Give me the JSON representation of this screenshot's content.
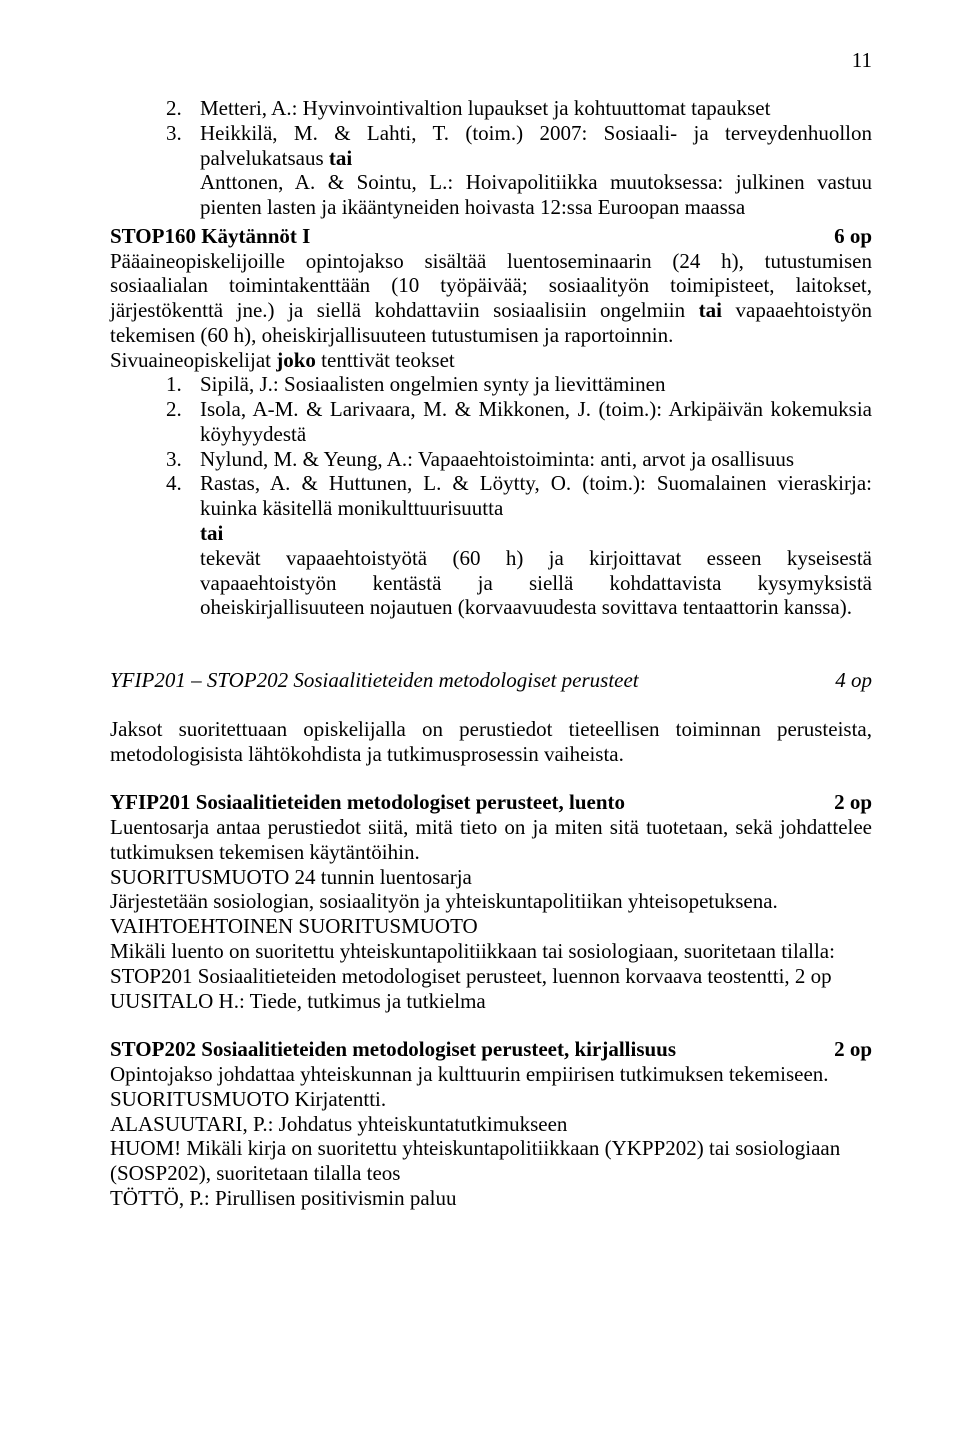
{
  "page_number": "11",
  "topList": {
    "items": [
      {
        "num": "2.",
        "text": "Metteri, A.: Hyvinvointivaltion lupaukset ja kohtuuttomat tapaukset"
      },
      {
        "num": "3.",
        "text_parts": [
          {
            "t": "Heikkilä, M. & Lahti, T. (toim.) 2007: Sosiaali- ja terveydenhuollon palvelukatsaus "
          },
          {
            "t": "tai",
            "bold": true
          }
        ],
        "cont": "Anttonen, A. & Sointu, L.: Hoivapolitiikka muutoksessa: julkinen vastuu pienten lasten ja ikääntyneiden hoivasta 12:ssa Euroopan maassa"
      }
    ]
  },
  "stop160": {
    "heading_left": "STOP160 Käytännöt I",
    "heading_right": "6 op",
    "body_parts": [
      {
        "t": "Pääaineopiskelijoille opintojakso sisältää luentoseminaarin (24 h), tutustumisen sosiaalialan toimintakenttään (10 työpäivää; sosiaalityön toimipisteet, laitokset, järjestökenttä jne.) ja siellä kohdattaviin sosiaalisiin ongelmiin "
      },
      {
        "t": "tai",
        "bold": true
      },
      {
        "t": " vapaaehtoistyön tekemisen (60 h), oheiskirjallisuuteen tutustumisen ja raportoinnin."
      }
    ],
    "sub_parts": [
      {
        "t": "Sivuaineopiskelijat "
      },
      {
        "t": "joko",
        "bold": true
      },
      {
        "t": " tenttivät teokset"
      }
    ],
    "list": [
      {
        "num": "1.",
        "text": "Sipilä, J.: Sosiaalisten ongelmien synty ja lievittäminen"
      },
      {
        "num": "2.",
        "text": "Isola, A-M. & Larivaara, M. & Mikkonen, J. (toim.): Arkipäivän kokemuksia köyhyydestä"
      },
      {
        "num": "3.",
        "text": "Nylund, M. & Yeung, A.: Vapaaehtoistoiminta: anti, arvot ja osallisuus"
      },
      {
        "num": "4.",
        "text": "Rastas, A. & Huttunen, L. & Löytty, O. (toim.): Suomalainen vieraskirja: kuinka käsitellä monikulttuurisuutta"
      }
    ],
    "tai_label": "tai",
    "tai_text": "tekevät vapaaehtoistyötä (60 h) ja kirjoittavat esseen kyseisestä vapaaehtoistyön kentästä ja siellä kohdattavista kysymyksistä oheiskirjallisuuteen nojautuen (korvaavuudesta sovittava tentaattorin kanssa)."
  },
  "yfip_heading": {
    "left": "YFIP201 – STOP202 Sosiaalitieteiden metodologiset perusteet",
    "right": "4 op"
  },
  "yfip_intro": "Jaksot suoritettuaan opiskelijalla on perustiedot tieteellisen toiminnan perusteista, metodologisista lähtökohdista ja tutkimusprosessin vaiheista.",
  "yfip201": {
    "heading_left": "YFIP201 Sosiaalitieteiden metodologiset perusteet, luento",
    "heading_right": "2 op",
    "lines": [
      "Luentosarja antaa perustiedot siitä, mitä tieto on ja miten sitä tuotetaan, sekä johdattelee tutkimuksen tekemisen käytäntöihin.",
      "SUORITUSMUOTO 24 tunnin luentosarja",
      "Järjestetään sosiologian, sosiaalityön ja yhteiskuntapolitiikan yhteisopetuksena.",
      "VAIHTOEHTOINEN SUORITUSMUOTO",
      "Mikäli luento on suoritettu yhteiskuntapolitiikkaan tai sosiologiaan, suoritetaan tilalla:",
      "STOP201 Sosiaalitieteiden metodologiset perusteet, luennon korvaava teostentti, 2 op",
      "UUSITALO H.: Tiede, tutkimus ja tutkielma"
    ]
  },
  "stop202": {
    "heading_left": "STOP202 Sosiaalitieteiden metodologiset perusteet, kirjallisuus",
    "heading_right": "2 op",
    "lines": [
      "Opintojakso johdattaa yhteiskunnan ja kulttuurin empiirisen tutkimuksen tekemiseen.",
      "SUORITUSMUOTO Kirjatentti.",
      "ALASUUTARI, P.: Johdatus yhteiskuntatutkimukseen",
      "HUOM! Mikäli kirja on suoritettu yhteiskuntapolitiikkaan (YKPP202) tai sosiologiaan (SOSP202), suoritetaan tilalla teos",
      "TÖTTÖ, P.: Pirullisen positivismin paluu"
    ]
  }
}
